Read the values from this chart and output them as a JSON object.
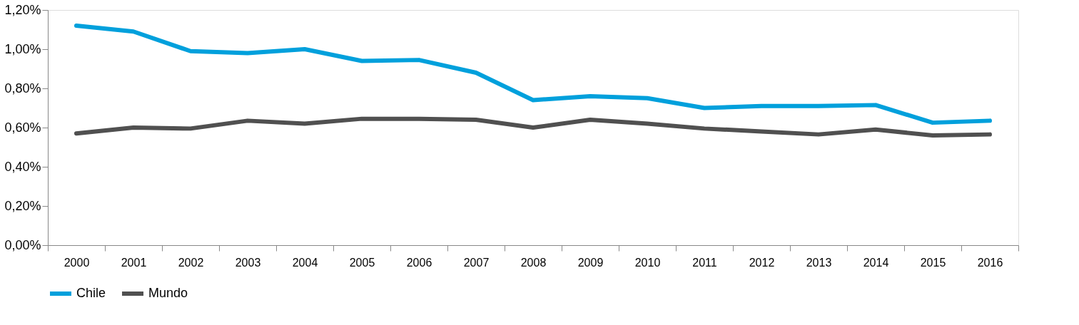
{
  "chart_data": {
    "type": "line",
    "categories": [
      "2000",
      "2001",
      "2002",
      "2003",
      "2004",
      "2005",
      "2006",
      "2007",
      "2008",
      "2009",
      "2010",
      "2011",
      "2012",
      "2013",
      "2014",
      "2015",
      "2016"
    ],
    "series": [
      {
        "name": "Chile",
        "color": "#00a0dc",
        "values": [
          1.12,
          1.09,
          0.99,
          0.98,
          1.0,
          0.94,
          0.945,
          0.88,
          0.74,
          0.76,
          0.75,
          0.7,
          0.71,
          0.71,
          0.715,
          0.625,
          0.635
        ]
      },
      {
        "name": "Mundo",
        "color": "#505050",
        "values": [
          0.57,
          0.6,
          0.595,
          0.635,
          0.62,
          0.645,
          0.645,
          0.64,
          0.6,
          0.64,
          0.62,
          0.595,
          0.58,
          0.565,
          0.59,
          0.56,
          0.565
        ]
      }
    ],
    "ylim": [
      0,
      1.2
    ],
    "yticks": [
      {
        "value": 0,
        "label": "0,00%"
      },
      {
        "value": 0.2,
        "label": "0,20%"
      },
      {
        "value": 0.4,
        "label": "0,40%"
      },
      {
        "value": 0.6,
        "label": "0,60%"
      },
      {
        "value": 0.8,
        "label": "0,80%"
      },
      {
        "value": 1.0,
        "label": "1,00%"
      },
      {
        "value": 1.2,
        "label": "1,20%"
      }
    ],
    "grid": false,
    "legend": "bottom",
    "marker": "none",
    "line_style": "solid"
  }
}
